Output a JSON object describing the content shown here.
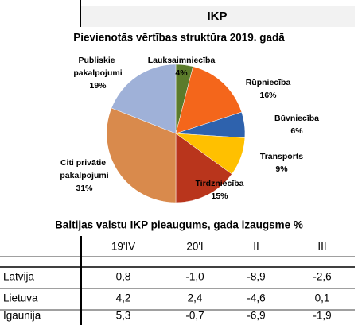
{
  "header": {
    "title": "IKP"
  },
  "chart_data": {
    "type": "pie",
    "title": "Pievienotās vērtības struktūra 2019. gadā",
    "categories": [
      "Lauksaimniecība",
      "Rūpniecība",
      "Būvniecība",
      "Transports",
      "Tirdzniecība",
      "Citi privātie pakalpojumi",
      "Publiskie pakalpojumi"
    ],
    "values": [
      4,
      16,
      6,
      9,
      15,
      31,
      19
    ],
    "value_labels": [
      "4%",
      "16%",
      "6%",
      "9%",
      "15%",
      "31%",
      "19%"
    ],
    "colors": [
      "#5b7b2b",
      "#f4661b",
      "#2e62ad",
      "#ffc000",
      "#b9351c",
      "#d98a4c",
      "#9fb1d8"
    ]
  },
  "table": {
    "title": "Baltijas valstu IKP pieaugums, gada izaugsme %",
    "columns": [
      "19'IV",
      "20'I",
      "II",
      "III"
    ],
    "rows": [
      {
        "label": "Latvija",
        "values": [
          "0,8",
          "-1,0",
          "-8,9",
          "-2,6"
        ]
      },
      {
        "label": "Lietuva",
        "values": [
          "4,2",
          "2,4",
          "-4,6",
          "0,1"
        ]
      },
      {
        "label": "Igaunija",
        "values": [
          "5,3",
          "-0,7",
          "-6,9",
          "-1,9"
        ]
      }
    ]
  }
}
